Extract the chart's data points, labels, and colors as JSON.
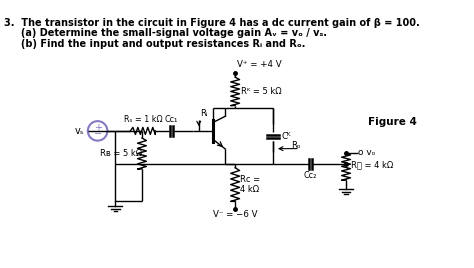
{
  "bg_color": "#ffffff",
  "cc": "#000000",
  "purple": "#8878c3",
  "fig_w": 4.74,
  "fig_h": 2.68,
  "dpi": 100,
  "header": [
    "3.  The transistor in the circuit in Figure 4 has a dc current gain of β = 100.",
    "     (a) Determine the small-signal voltage gain Aᵥ = vₒ / vₛ.",
    "     (b) Find the input and output resistances Rᵢ and Rₒ."
  ],
  "figure_label": "Figure 4",
  "vcc_label": "V⁺ = +4 V",
  "vee_label": "V⁻ = −6 V",
  "re_label": "Rᴷ = 5 kΩ",
  "rc_label": "Rᴄ =\n4 kΩ",
  "rs_label": "Rₛ = 1 kΩ",
  "rb_label": "Rʙ = 5 kΩ",
  "rl_label": "R⧸ = 4 kΩ",
  "r1_label": "Rᵢ",
  "ro_label": "Rₒ",
  "ce_label": "Cᴷ",
  "cc1_label": "Cᴄ₁",
  "cc2_label": "Cᴄ₂",
  "vs_label": "vₛ",
  "vo_label": "o vₒ"
}
